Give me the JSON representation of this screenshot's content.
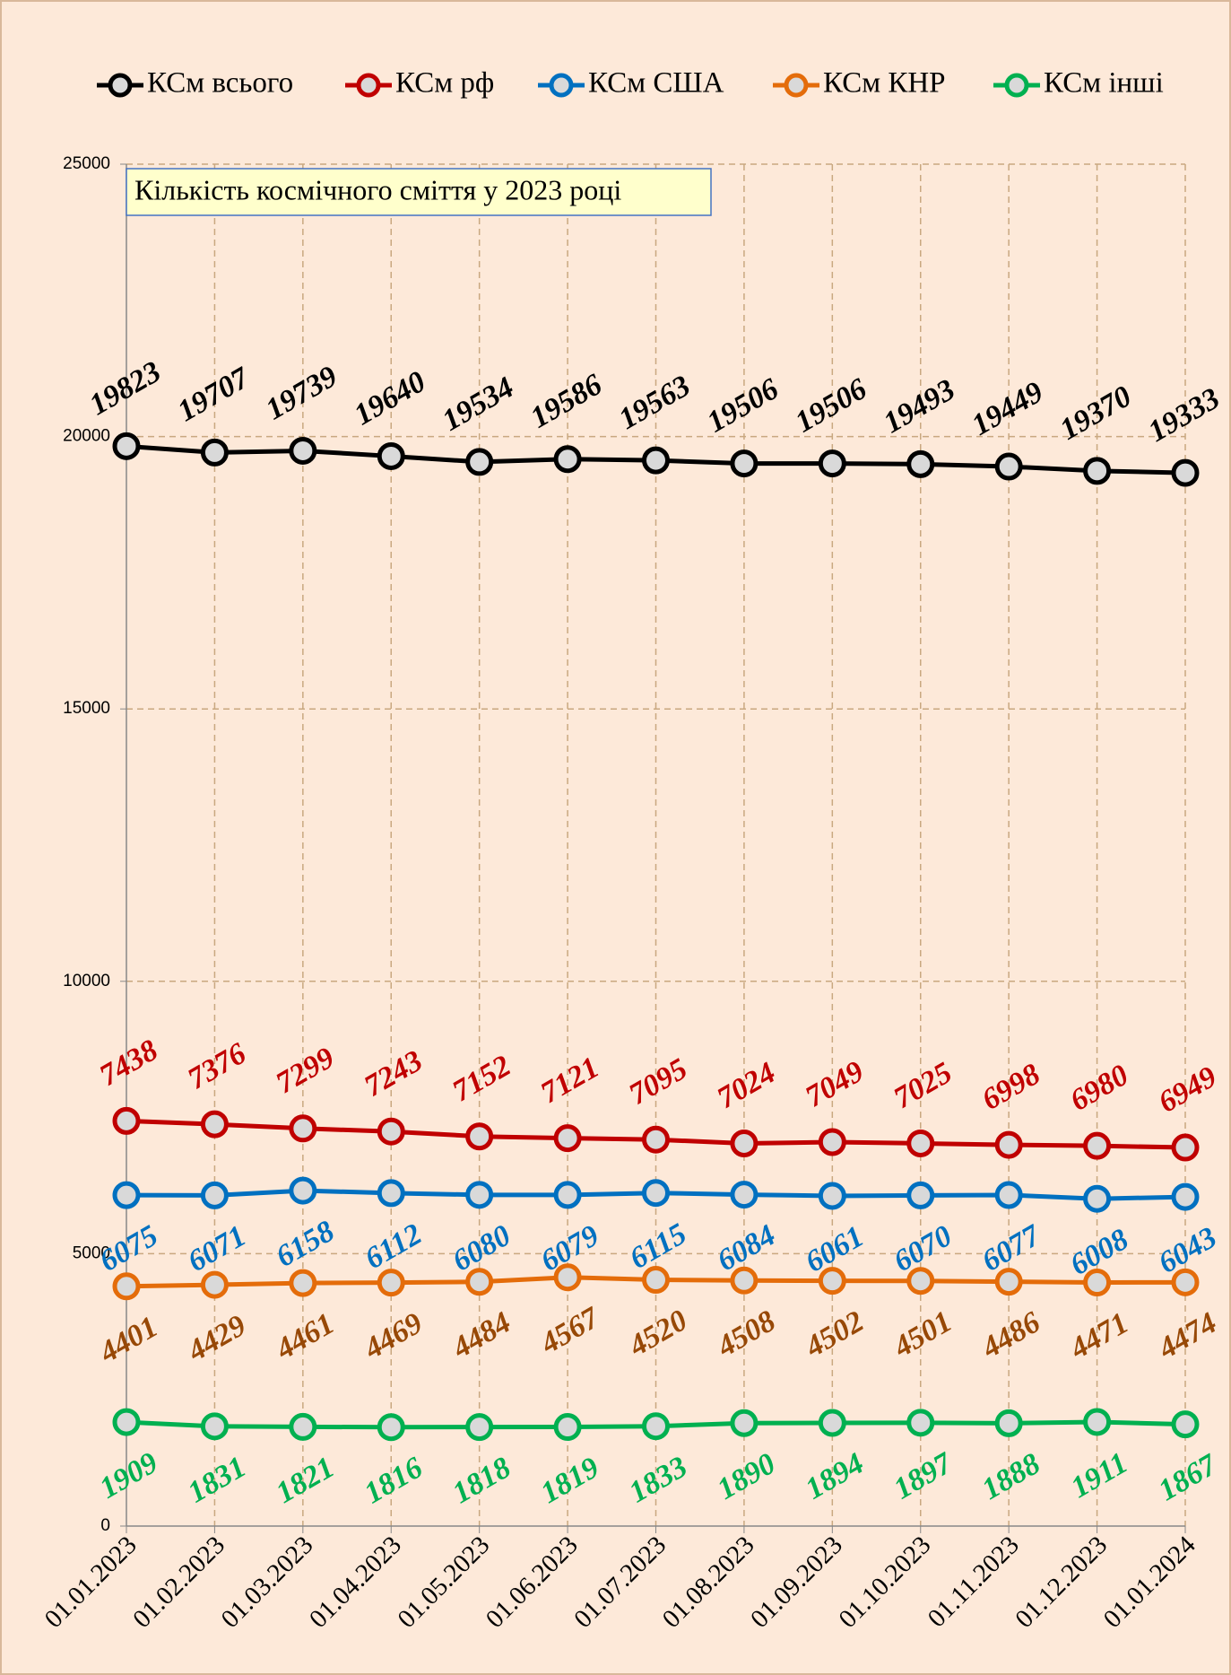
{
  "chart_data": {
    "type": "line",
    "annotation": "Кількість космічного сміття у 2023 році",
    "categories": [
      "01.01.2023",
      "01.02.2023",
      "01.03.2023",
      "01.04.2023",
      "01.05.2023",
      "01.06.2023",
      "01.07.2023",
      "01.08.2023",
      "01.09.2023",
      "01.10.2023",
      "01.11.2023",
      "01.12.2023",
      "01.01.2024"
    ],
    "series": [
      {
        "name": "КСм всього",
        "color": "#000000",
        "label_color": "#000000",
        "values": [
          19823,
          19707,
          19739,
          19640,
          19534,
          19586,
          19563,
          19506,
          19506,
          19493,
          19449,
          19370,
          19333
        ]
      },
      {
        "name": "КСм рф",
        "color": "#c00000",
        "label_color": "#c00000",
        "values": [
          7438,
          7376,
          7299,
          7243,
          7152,
          7121,
          7095,
          7024,
          7049,
          7025,
          6998,
          6980,
          6949
        ]
      },
      {
        "name": "КСм США",
        "color": "#0070c0",
        "label_color": "#0070c0",
        "values": [
          6075,
          6071,
          6158,
          6112,
          6080,
          6079,
          6115,
          6084,
          6061,
          6070,
          6077,
          6008,
          6043
        ]
      },
      {
        "name": "КСм КНР",
        "color": "#e46c0a",
        "label_color": "#974806",
        "values": [
          4401,
          4429,
          4461,
          4469,
          4484,
          4567,
          4520,
          4508,
          4502,
          4501,
          4486,
          4471,
          4474
        ]
      },
      {
        "name": "КСм інші",
        "color": "#00b050",
        "label_color": "#00b050",
        "values": [
          1909,
          1831,
          1821,
          1816,
          1818,
          1819,
          1833,
          1890,
          1894,
          1897,
          1888,
          1911,
          1867
        ]
      }
    ],
    "ylim": [
      0,
      25000
    ],
    "yticks": [
      0,
      5000,
      10000,
      15000,
      20000,
      25000
    ],
    "grid": true,
    "legend": "top"
  }
}
